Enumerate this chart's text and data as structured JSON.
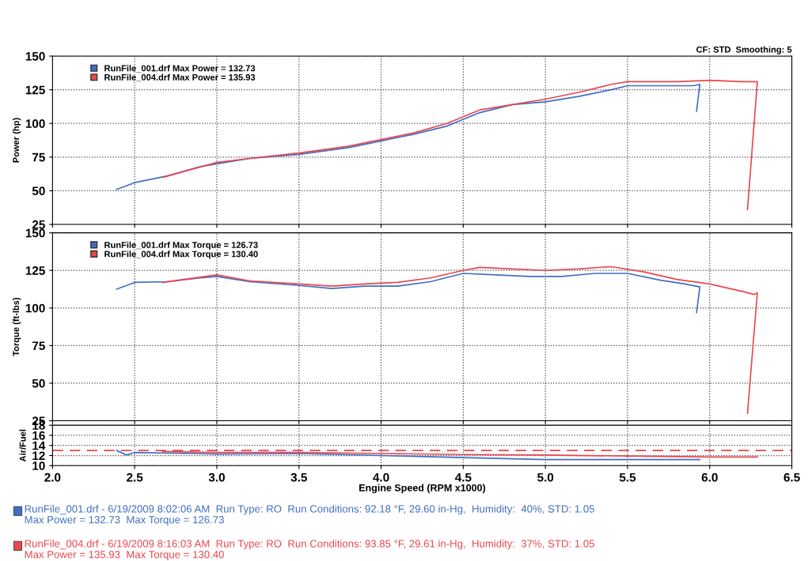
{
  "chart_data": [
    {
      "type": "line",
      "ylabel": "Power (hp)",
      "annotations": [
        "CF: STD  Smoothing: 5"
      ],
      "xlim": [
        2.0,
        6.5
      ],
      "xticks": [
        2.0,
        2.5,
        3.0,
        3.5,
        4.0,
        4.5,
        5.0,
        5.5,
        6.0,
        6.5
      ],
      "ylim": [
        25,
        150
      ],
      "yticks": [
        25,
        50,
        75,
        100,
        125,
        150
      ],
      "tick_labels": "y",
      "grid": true,
      "legend": "top left",
      "series": [
        {
          "name": "RunFile_001.drf Max Power = 132.73",
          "color": "#3f6fc4",
          "x": [
            2.39,
            2.5,
            2.7,
            2.9,
            3.0,
            3.2,
            3.5,
            3.8,
            4.0,
            4.2,
            4.4,
            4.5,
            4.6,
            4.8,
            5.0,
            5.2,
            5.4,
            5.5,
            5.7,
            5.9,
            5.94,
            5.92
          ],
          "values": [
            51,
            56,
            61,
            68,
            70,
            74,
            77,
            82,
            87,
            92,
            98,
            103,
            108,
            114,
            116,
            120,
            125,
            128,
            128,
            128,
            129,
            109
          ]
        },
        {
          "name": "RunFile_004.drf Max Power = 135.93",
          "color": "#e8474f",
          "x": [
            2.67,
            3.0,
            3.2,
            3.5,
            3.8,
            4.0,
            4.2,
            4.4,
            4.5,
            4.6,
            4.8,
            5.0,
            5.2,
            5.4,
            5.5,
            5.8,
            6.0,
            6.2,
            6.28,
            6.29,
            6.23
          ],
          "values": [
            60,
            71,
            74,
            78,
            83,
            88,
            93,
            100,
            105,
            110,
            114,
            118,
            123,
            129,
            131,
            131,
            132,
            131,
            131,
            131,
            36
          ]
        }
      ]
    },
    {
      "type": "line",
      "ylabel": "Torque (ft-lbs)",
      "xlim": [
        2.0,
        6.5
      ],
      "xticks": [
        2.0,
        2.5,
        3.0,
        3.5,
        4.0,
        4.5,
        5.0,
        5.5,
        6.0,
        6.5
      ],
      "ylim": [
        25,
        150
      ],
      "yticks": [
        25,
        50,
        75,
        100,
        125,
        150
      ],
      "tick_labels": "y",
      "grid": true,
      "legend": "top left",
      "series": [
        {
          "name": "RunFile_001.drf Max Torque = 126.73",
          "color": "#3f6fc4",
          "x": [
            2.39,
            2.5,
            2.7,
            2.9,
            3.0,
            3.2,
            3.5,
            3.7,
            3.9,
            4.1,
            4.3,
            4.5,
            4.7,
            4.9,
            5.1,
            5.3,
            5.5,
            5.7,
            5.85,
            5.94,
            5.92
          ],
          "values": [
            112.5,
            117,
            117.5,
            120,
            121,
            117.5,
            115,
            113,
            114.5,
            114.5,
            117.5,
            123,
            122,
            121,
            121,
            123,
            123,
            118.5,
            116,
            114,
            97
          ]
        },
        {
          "name": "RunFile_004.drf Max Torque = 130.40",
          "color": "#e8474f",
          "x": [
            2.67,
            2.8,
            3.0,
            3.2,
            3.5,
            3.7,
            3.9,
            4.1,
            4.3,
            4.5,
            4.6,
            4.8,
            5.0,
            5.2,
            5.4,
            5.6,
            5.8,
            6.0,
            6.2,
            6.27,
            6.29,
            6.23
          ],
          "values": [
            117,
            119,
            122,
            118,
            116,
            114.5,
            116,
            117,
            120,
            125,
            127,
            126,
            125,
            126,
            127.5,
            124,
            119,
            116,
            111,
            109,
            110,
            30
          ]
        }
      ]
    },
    {
      "type": "line",
      "ylabel": "Air/Fuel",
      "xlabel": "Engine Speed (RPM x1000)",
      "xlim": [
        2.0,
        6.5
      ],
      "xticks": [
        {
          "value": 2.0,
          "label": "2.0"
        },
        {
          "value": 2.5,
          "label": "2.5"
        },
        {
          "value": 3.0,
          "label": "3.0"
        },
        {
          "value": 3.5,
          "label": "3.5"
        },
        {
          "value": 4.0,
          "label": "4.0"
        },
        {
          "value": 4.5,
          "label": "4.5"
        },
        {
          "value": 5.0,
          "label": "5.0"
        },
        {
          "value": 5.5,
          "label": "5.5"
        },
        {
          "value": 6.0,
          "label": "6.0"
        },
        {
          "value": 6.5,
          "label": "6.5"
        }
      ],
      "ylim": [
        10,
        18
      ],
      "yticks": [
        10,
        12,
        14,
        16,
        18
      ],
      "grid": true,
      "ref_lines": [
        {
          "axis": "y",
          "value": 13,
          "color": "#e8474f",
          "line_style": "dashed"
        }
      ],
      "series": [
        {
          "color": "#3f6fc4",
          "x": [
            2.39,
            2.45,
            2.5,
            3.0,
            3.5,
            4.0,
            4.5,
            5.0,
            5.5,
            5.94
          ],
          "values": [
            13.0,
            12.1,
            12.6,
            12.3,
            12.4,
            12.0,
            11.6,
            11.2,
            11.2,
            11.2
          ]
        },
        {
          "color": "#e8474f",
          "x": [
            2.67,
            3.0,
            3.5,
            4.0,
            4.5,
            5.0,
            5.5,
            6.0,
            6.29
          ],
          "values": [
            12.8,
            12.6,
            12.6,
            12.4,
            12.2,
            12.1,
            11.9,
            11.7,
            11.7
          ]
        }
      ],
      "annotations": [
        "RunFile_001.drf - 6/19/2009 8:02:06 AM  Run Type: RO  Run Conditions: 92.18 °F, 29.60 in-Hg,  Humidity:  40%, STD: 1.05\nMax Power = 132.73  Max Torque = 126.73",
        "RunFile_004.drf - 6/19/2009 8:16:03 AM  Run Type: RO  Run Conditions: 93.85 °F, 29.61 in-Hg,  Humidity:  37%, STD: 1.05\nMax Power = 135.93  Max Torque = 130.40"
      ]
    }
  ]
}
